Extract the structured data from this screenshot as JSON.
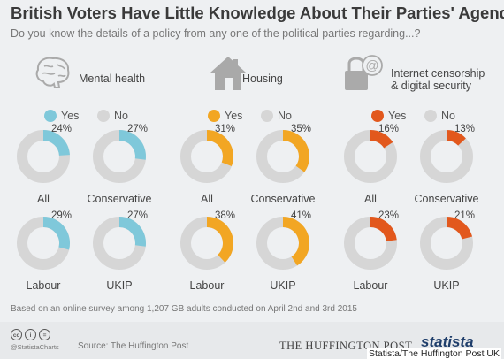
{
  "title": "British Voters Have Little Knowledge About Their Parties' Agendas",
  "subtitle": "Do you know the details of a policy from any one of the political parties regarding...?",
  "legend": {
    "yes": "Yes",
    "no": "No"
  },
  "colors": {
    "no": "#d6d6d6",
    "health": "#7fc8da",
    "housing": "#f2a623",
    "internet": "#e2581d"
  },
  "chart_data": {
    "type": "pie",
    "subtype": "donut-grid",
    "groups": [
      {
        "category": "Mental health",
        "icon": "brain-icon",
        "color": "#7fc8da",
        "parties": [
          {
            "party": "All",
            "yes": 24,
            "label": "24%"
          },
          {
            "party": "Conservative",
            "yes": 27,
            "label": "27%"
          },
          {
            "party": "Labour",
            "yes": 29,
            "label": "29%"
          },
          {
            "party": "UKIP",
            "yes": 27,
            "label": "27%"
          }
        ]
      },
      {
        "category": "Housing",
        "icon": "house-icon",
        "color": "#f2a623",
        "parties": [
          {
            "party": "All",
            "yes": 31,
            "label": "31%"
          },
          {
            "party": "Conservative",
            "yes": 35,
            "label": "35%"
          },
          {
            "party": "Labour",
            "yes": 38,
            "label": "38%"
          },
          {
            "party": "UKIP",
            "yes": 41,
            "label": "41%"
          }
        ]
      },
      {
        "category": "Internet censorship & digital security",
        "category_lines": [
          "Internet censorship",
          "& digital security"
        ],
        "icon": "lock-at-icon",
        "color": "#e2581d",
        "parties": [
          {
            "party": "All",
            "yes": 16,
            "label": "16%"
          },
          {
            "party": "Conservative",
            "yes": 13,
            "label": "13%"
          },
          {
            "party": "Labour",
            "yes": 23,
            "label": "23%"
          },
          {
            "party": "UKIP",
            "yes": 21,
            "label": "21%"
          }
        ]
      }
    ]
  },
  "footnote": "Based on an online survey among 1,207 GB adults conducted on April 2nd and 3rd 2015",
  "footer": {
    "handle": "@StatistaCharts",
    "source": "Source: The Huffington Post",
    "huffpost_logo": "THE HUFFINGTON POST",
    "statista_logo": "statista",
    "credit": "Statista/The Huffington Post UK",
    "license_icons": [
      "cc-icon",
      "person-icon",
      "equals-icon"
    ]
  }
}
